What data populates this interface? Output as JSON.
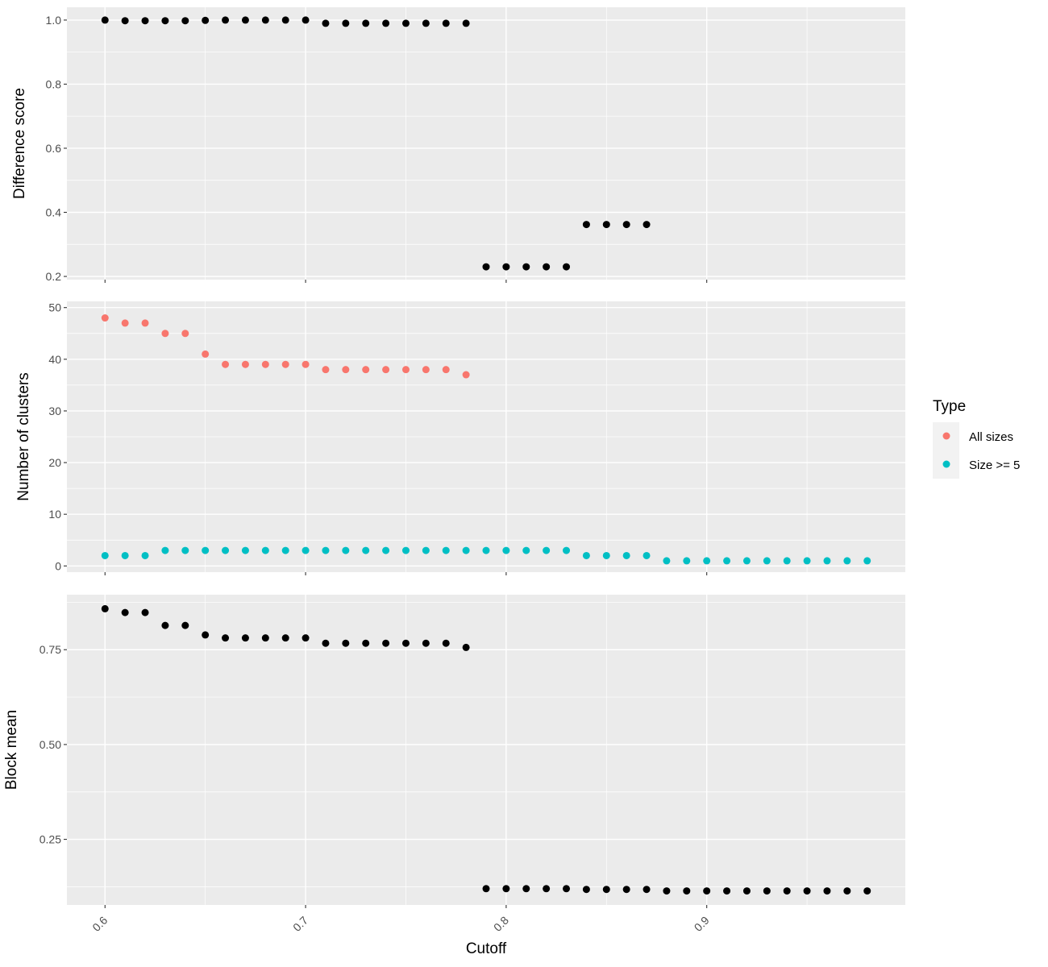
{
  "chart_data": [
    {
      "type": "scatter",
      "panel": "top",
      "ylabel": "Difference score",
      "xlabel": "",
      "ylim": [
        0.19,
        1.04
      ],
      "y_ticks": [
        0.2,
        0.4,
        0.6,
        0.8,
        1.0
      ],
      "y_tick_labels": [
        "0.2",
        "0.4",
        "0.6",
        "0.8",
        "1.0"
      ],
      "grid": true,
      "series": [
        {
          "color": "#000000",
          "x": [
            0.6,
            0.61,
            0.62,
            0.63,
            0.64,
            0.65,
            0.66,
            0.67,
            0.68,
            0.69,
            0.7,
            0.71,
            0.72,
            0.73,
            0.74,
            0.75,
            0.76,
            0.77,
            0.78,
            0.79,
            0.8,
            0.81,
            0.82,
            0.83,
            0.84,
            0.85,
            0.86,
            0.87
          ],
          "y": [
            1.0,
            0.998,
            0.998,
            0.998,
            0.998,
            0.999,
            1.0,
            1.0,
            1.0,
            1.0,
            1.0,
            0.99,
            0.99,
            0.99,
            0.99,
            0.99,
            0.99,
            0.99,
            0.99,
            0.23,
            0.23,
            0.23,
            0.23,
            0.23,
            0.362,
            0.362,
            0.362,
            0.362
          ]
        }
      ]
    },
    {
      "type": "scatter",
      "panel": "middle",
      "ylabel": "Number of clusters",
      "xlabel": "",
      "ylim": [
        -1.2,
        51.2
      ],
      "y_ticks": [
        0,
        10,
        20,
        30,
        40,
        50
      ],
      "y_tick_labels": [
        "0",
        "10",
        "20",
        "30",
        "40",
        "50"
      ],
      "grid": true,
      "legend": {
        "title": "Type",
        "placement": "right"
      },
      "series": [
        {
          "name": "All sizes",
          "color": "#F8766D",
          "x": [
            0.6,
            0.61,
            0.62,
            0.63,
            0.64,
            0.65,
            0.66,
            0.67,
            0.68,
            0.69,
            0.7,
            0.71,
            0.72,
            0.73,
            0.74,
            0.75,
            0.76,
            0.77,
            0.78
          ],
          "y": [
            48,
            47,
            47,
            45,
            45,
            41,
            39,
            39,
            39,
            39,
            39,
            38,
            38,
            38,
            38,
            38,
            38,
            38,
            37
          ]
        },
        {
          "name": "Size >= 5",
          "color": "#00BFC4",
          "x": [
            0.6,
            0.61,
            0.62,
            0.63,
            0.64,
            0.65,
            0.66,
            0.67,
            0.68,
            0.69,
            0.7,
            0.71,
            0.72,
            0.73,
            0.74,
            0.75,
            0.76,
            0.77,
            0.78,
            0.79,
            0.8,
            0.81,
            0.82,
            0.83,
            0.84,
            0.85,
            0.86,
            0.87,
            0.88,
            0.89,
            0.9,
            0.91,
            0.92,
            0.93,
            0.94,
            0.95,
            0.96,
            0.97,
            0.98
          ],
          "y": [
            2,
            2,
            2,
            3,
            3,
            3,
            3,
            3,
            3,
            3,
            3,
            3,
            3,
            3,
            3,
            3,
            3,
            3,
            3,
            3,
            3,
            3,
            3,
            3,
            2,
            2,
            2,
            2,
            1,
            1,
            1,
            1,
            1,
            1,
            1,
            1,
            1,
            1,
            1
          ]
        }
      ]
    },
    {
      "type": "scatter",
      "panel": "bottom",
      "ylabel": "Block mean",
      "xlabel": "Cutoff",
      "ylim": [
        0.077,
        0.895
      ],
      "y_ticks": [
        0.25,
        0.5,
        0.75
      ],
      "y_tick_labels": [
        "0.25",
        "0.50",
        "0.75"
      ],
      "x_ticks": [
        0.6,
        0.7,
        0.8,
        0.9
      ],
      "x_tick_labels": [
        "0.6",
        "0.7",
        "0.8",
        "0.9"
      ],
      "grid": true,
      "series": [
        {
          "color": "#000000",
          "x": [
            0.6,
            0.61,
            0.62,
            0.63,
            0.64,
            0.65,
            0.66,
            0.67,
            0.68,
            0.69,
            0.7,
            0.71,
            0.72,
            0.73,
            0.74,
            0.75,
            0.76,
            0.77,
            0.78,
            0.79,
            0.8,
            0.81,
            0.82,
            0.83,
            0.84,
            0.85,
            0.86,
            0.87,
            0.88,
            0.89,
            0.9,
            0.91,
            0.92,
            0.93,
            0.94,
            0.95,
            0.96,
            0.97,
            0.98
          ],
          "y": [
            0.858,
            0.848,
            0.848,
            0.814,
            0.814,
            0.789,
            0.781,
            0.781,
            0.781,
            0.781,
            0.781,
            0.767,
            0.767,
            0.767,
            0.767,
            0.767,
            0.767,
            0.767,
            0.756,
            0.12,
            0.12,
            0.12,
            0.12,
            0.12,
            0.118,
            0.118,
            0.118,
            0.118,
            0.114,
            0.114,
            0.114,
            0.114,
            0.114,
            0.114,
            0.114,
            0.114,
            0.114,
            0.114,
            0.114
          ]
        }
      ]
    }
  ],
  "x_axis": {
    "xlim": [
      0.581,
      0.999
    ],
    "minor_ticks": [
      0.65,
      0.75,
      0.85,
      0.95
    ]
  },
  "colors": {
    "panel_background": "#EBEBEB",
    "grid_line": "#FFFFFF",
    "default_point": "#000000"
  }
}
